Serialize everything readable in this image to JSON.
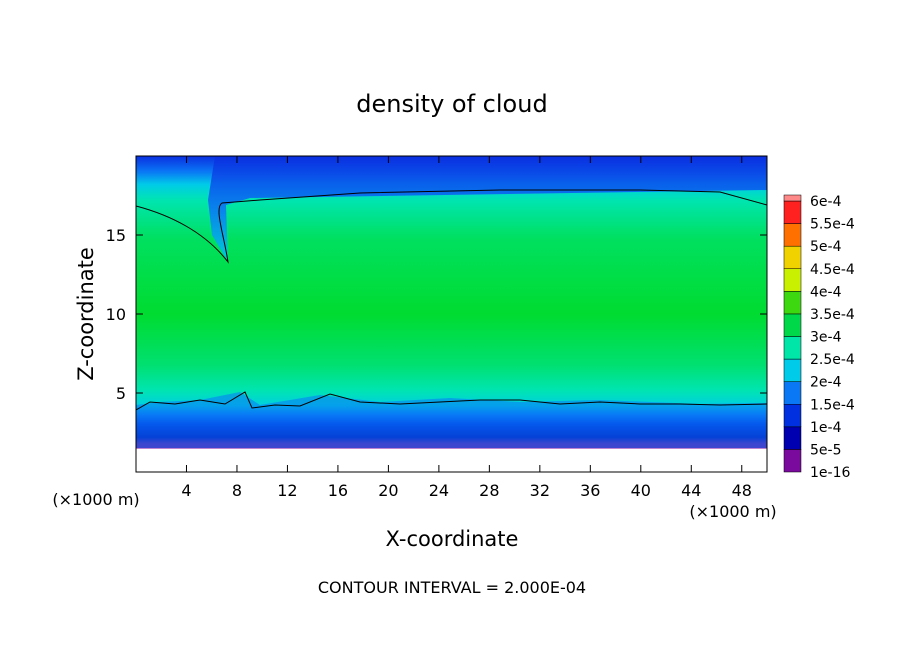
{
  "chart_data": {
    "type": "heatmap",
    "title": "density of cloud",
    "xlabel": "X-coordinate",
    "ylabel": "Z-coordinate",
    "x_unit": "(×1000 m)",
    "y_unit": "(×1000 m)",
    "footer": "CONTOUR INTERVAL = 2.000E-04",
    "xlim": [
      0,
      50
    ],
    "ylim": [
      0,
      20
    ],
    "x_ticks": [
      4,
      8,
      12,
      16,
      20,
      24,
      28,
      32,
      36,
      40,
      44,
      48
    ],
    "y_ticks": [
      5,
      10,
      15
    ],
    "colorbar": {
      "levels": [
        "1e-16",
        "5e-5",
        "1e-4",
        "1.5e-4",
        "2e-4",
        "2.5e-4",
        "3e-4",
        "3.5e-4",
        "4e-4",
        "4.5e-4",
        "5e-4",
        "5.5e-4",
        "6e-4"
      ],
      "colors": [
        "#7a0a9e",
        "#0000b0",
        "#0030e0",
        "#0a78f5",
        "#00cbe8",
        "#00e5a8",
        "#00d84a",
        "#3ed810",
        "#c8f000",
        "#f0d200",
        "#ff7000",
        "#ff2020",
        "#ff8888"
      ]
    },
    "contour_level": 0.0002,
    "regions": [
      {
        "z_range": [
          0,
          1.8
        ],
        "value": "no cloud"
      },
      {
        "z_range": [
          1.8,
          4.5
        ],
        "value": "1e-16 – 2e-4"
      },
      {
        "z_range": [
          4.5,
          17
        ],
        "value": "2e-4 – 3.5e-4"
      },
      {
        "z_range": [
          17,
          20
        ],
        "value": "1e-4 – 2e-4"
      }
    ]
  }
}
